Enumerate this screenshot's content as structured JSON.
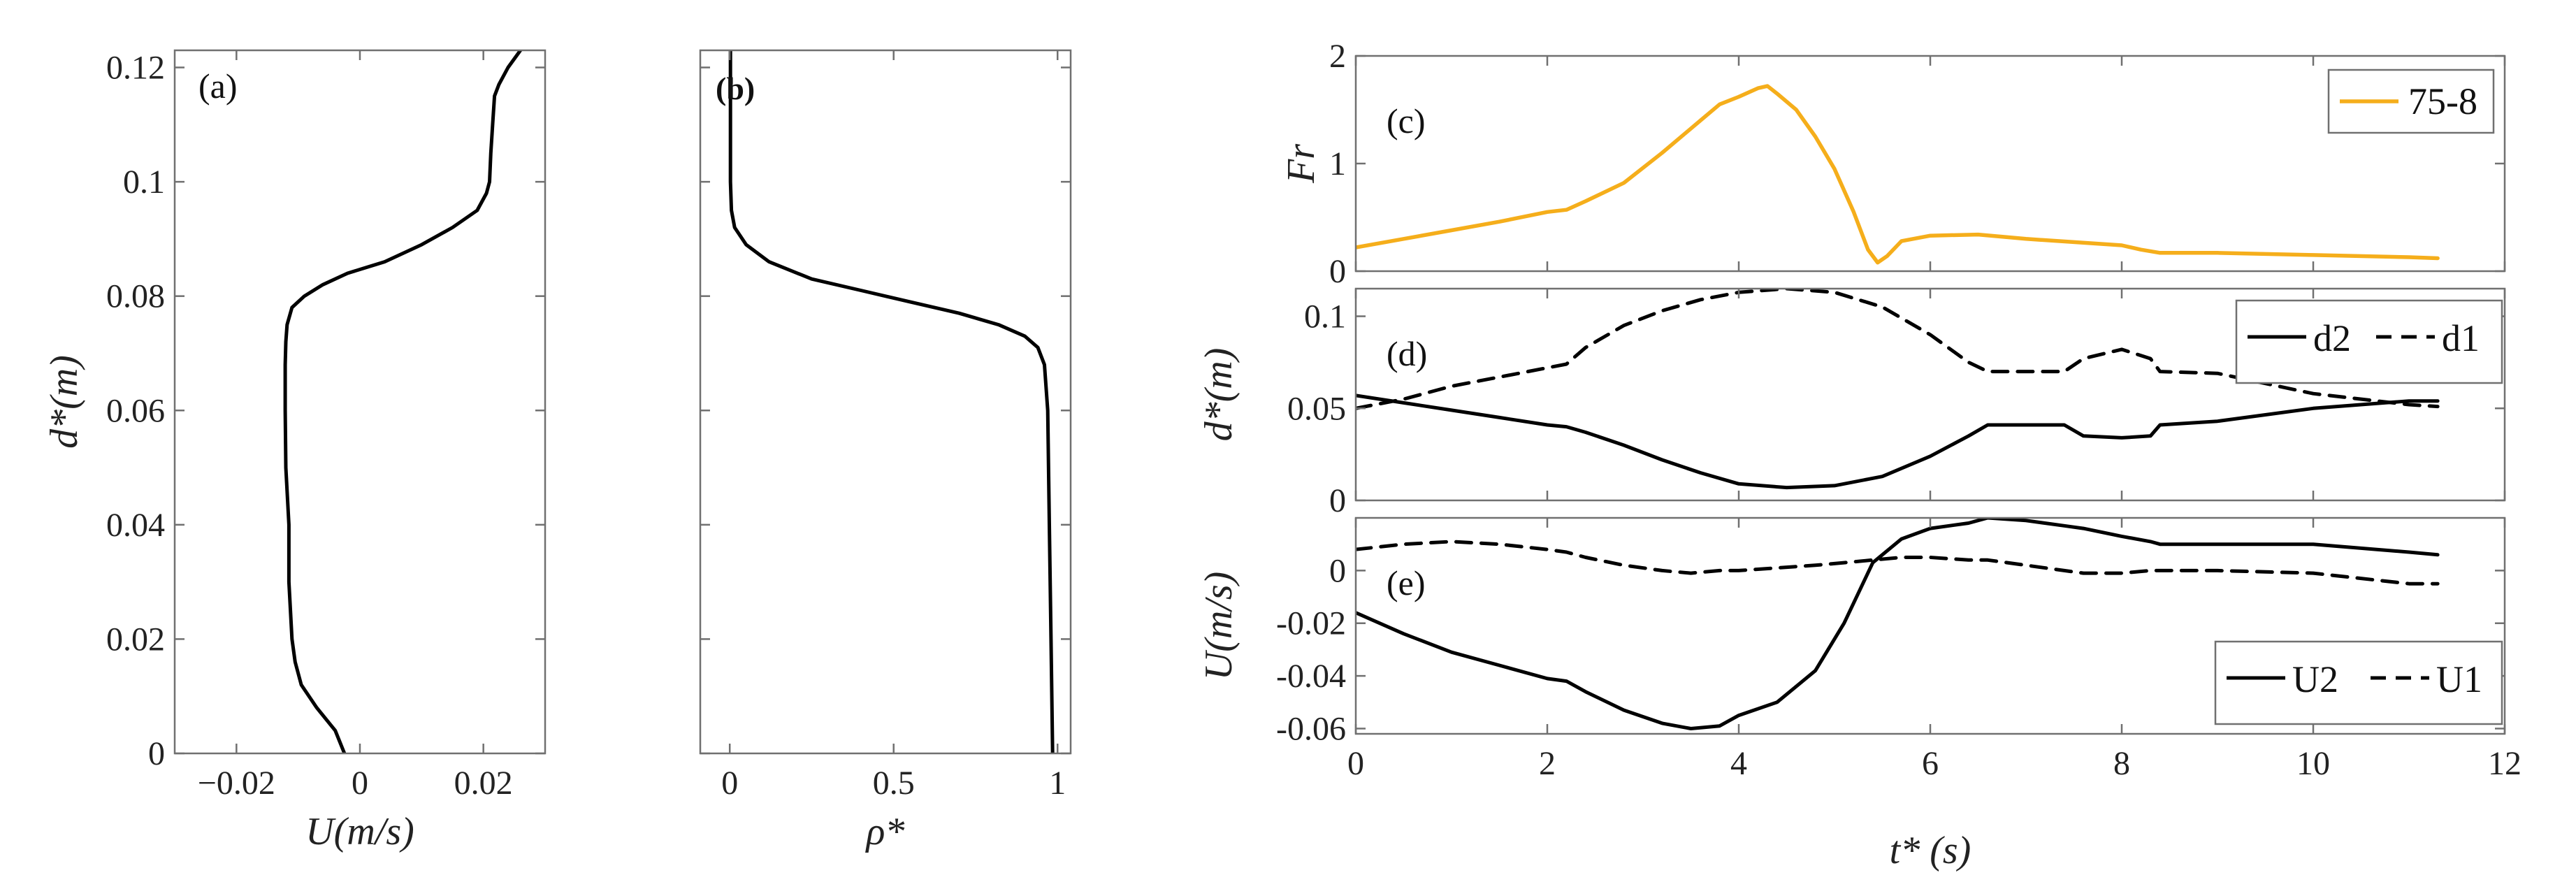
{
  "chart_data": [
    {
      "id": "a",
      "type": "line",
      "panel_label": "(a)",
      "xlabel": "U(m/s)",
      "ylabel": "d*(m)",
      "xlim": [
        -0.03,
        0.03
      ],
      "ylim": [
        0,
        0.123
      ],
      "xticks": [
        -0.02,
        0,
        0.02
      ],
      "xtick_labels": [
        "−0.02",
        "0",
        "0.02"
      ],
      "yticks": [
        0,
        0.02,
        0.04,
        0.06,
        0.08,
        0.1,
        0.12
      ],
      "ytick_labels": [
        "0",
        "0.02",
        "0.04",
        "0.06",
        "0.08",
        "0.1",
        "0.12"
      ],
      "series": [
        {
          "name": "U profile",
          "color": "#000000",
          "dash": "solid",
          "x": [
            -0.0025,
            -0.004,
            -0.007,
            -0.0095,
            -0.0105,
            -0.011,
            -0.0115,
            -0.0115,
            -0.012,
            -0.0121,
            -0.0121,
            -0.012,
            -0.0118,
            -0.011,
            -0.009,
            -0.006,
            -0.002,
            0.004,
            0.01,
            0.015,
            0.019,
            0.0205,
            0.021,
            0.0212,
            0.0215,
            0.0218,
            0.0225,
            0.024,
            0.026
          ],
          "y": [
            0,
            0.004,
            0.008,
            0.012,
            0.016,
            0.02,
            0.03,
            0.04,
            0.05,
            0.06,
            0.068,
            0.072,
            0.075,
            0.078,
            0.08,
            0.082,
            0.084,
            0.086,
            0.089,
            0.092,
            0.095,
            0.098,
            0.1,
            0.105,
            0.11,
            0.115,
            0.117,
            0.12,
            0.123
          ]
        }
      ]
    },
    {
      "id": "b",
      "type": "line",
      "panel_label": "(b)",
      "xlabel": "ρ*",
      "ylabel": "",
      "xlim": [
        -0.09,
        1.04
      ],
      "ylim": [
        0,
        0.123
      ],
      "xticks": [
        0,
        0.5,
        1
      ],
      "xtick_labels": [
        "0",
        "0.5",
        "1"
      ],
      "yticks": [
        0,
        0.02,
        0.04,
        0.06,
        0.08,
        0.1,
        0.12
      ],
      "ytick_labels": [],
      "series": [
        {
          "name": "rho profile",
          "color": "#000000",
          "dash": "solid",
          "x": [
            0.985,
            0.98,
            0.975,
            0.97,
            0.96,
            0.94,
            0.9,
            0.82,
            0.7,
            0.55,
            0.4,
            0.25,
            0.12,
            0.05,
            0.015,
            0.005,
            0.002,
            0.002
          ],
          "y": [
            0,
            0.02,
            0.04,
            0.06,
            0.068,
            0.071,
            0.073,
            0.075,
            0.077,
            0.079,
            0.081,
            0.083,
            0.086,
            0.089,
            0.092,
            0.095,
            0.1,
            0.123
          ]
        }
      ]
    },
    {
      "id": "c",
      "type": "line",
      "panel_label": "(c)",
      "xlabel": "",
      "ylabel": "Fr",
      "xlim": [
        0,
        12
      ],
      "ylim": [
        0,
        2
      ],
      "xticks": [
        0,
        2,
        4,
        6,
        8,
        10,
        12
      ],
      "xtick_labels": [],
      "yticks": [
        0,
        1,
        2
      ],
      "ytick_labels": [
        "0",
        "1",
        "2"
      ],
      "legend": {
        "position": "top-right",
        "entries": [
          "75-8"
        ]
      },
      "series": [
        {
          "name": "75-8",
          "color": "#f5ae1b",
          "dash": "solid",
          "x": [
            0,
            0.5,
            1,
            1.5,
            2,
            2.2,
            2.4,
            2.8,
            3.2,
            3.6,
            3.8,
            4.0,
            4.2,
            4.3,
            4.4,
            4.6,
            4.8,
            5.0,
            5.2,
            5.35,
            5.45,
            5.55,
            5.7,
            6,
            6.5,
            7,
            7.5,
            8,
            8.2,
            8.4,
            9,
            10,
            11,
            11.3
          ],
          "y": [
            0.22,
            0.3,
            0.38,
            0.46,
            0.55,
            0.57,
            0.65,
            0.82,
            1.1,
            1.4,
            1.55,
            1.62,
            1.7,
            1.72,
            1.65,
            1.5,
            1.25,
            0.95,
            0.55,
            0.2,
            0.08,
            0.14,
            0.28,
            0.33,
            0.34,
            0.3,
            0.27,
            0.24,
            0.2,
            0.17,
            0.17,
            0.15,
            0.13,
            0.12
          ]
        }
      ]
    },
    {
      "id": "d",
      "type": "line",
      "panel_label": "(d)",
      "xlabel": "",
      "ylabel": "d*(m)",
      "xlim": [
        0,
        12
      ],
      "ylim": [
        0,
        0.115
      ],
      "xticks": [
        0,
        2,
        4,
        6,
        8,
        10,
        12
      ],
      "xtick_labels": [],
      "yticks": [
        0,
        0.05,
        0.1
      ],
      "ytick_labels": [
        "0",
        "0.05",
        "0.1"
      ],
      "legend": {
        "position": "top-right",
        "entries": [
          "d2",
          "d1"
        ]
      },
      "series": [
        {
          "name": "d2",
          "color": "#000000",
          "dash": "solid",
          "x": [
            0,
            0.5,
            1,
            1.5,
            2,
            2.2,
            2.4,
            2.8,
            3.2,
            3.6,
            4.0,
            4.5,
            5.0,
            5.5,
            6.0,
            6.4,
            6.6,
            7.0,
            7.4,
            7.6,
            8.0,
            8.3,
            8.4,
            9.0,
            10,
            11,
            11.3
          ],
          "y": [
            0.057,
            0.053,
            0.049,
            0.045,
            0.041,
            0.04,
            0.037,
            0.03,
            0.022,
            0.015,
            0.009,
            0.007,
            0.008,
            0.013,
            0.024,
            0.035,
            0.041,
            0.041,
            0.041,
            0.035,
            0.034,
            0.035,
            0.041,
            0.043,
            0.05,
            0.054,
            0.054
          ]
        },
        {
          "name": "d1",
          "color": "#000000",
          "dash": "dashed",
          "x": [
            0,
            0.5,
            1,
            1.5,
            2,
            2.2,
            2.4,
            2.8,
            3.2,
            3.6,
            4.0,
            4.5,
            5.0,
            5.5,
            6.0,
            6.4,
            6.6,
            7.0,
            7.4,
            7.6,
            8.0,
            8.3,
            8.4,
            9.0,
            10,
            11,
            11.3
          ],
          "y": [
            0.05,
            0.055,
            0.062,
            0.067,
            0.072,
            0.074,
            0.083,
            0.095,
            0.103,
            0.109,
            0.113,
            0.115,
            0.113,
            0.105,
            0.09,
            0.075,
            0.07,
            0.07,
            0.07,
            0.077,
            0.082,
            0.077,
            0.07,
            0.069,
            0.058,
            0.052,
            0.051
          ]
        }
      ]
    },
    {
      "id": "e",
      "type": "line",
      "panel_label": "(e)",
      "xlabel": "t* (s)",
      "ylabel": "U(m/s)",
      "xlim": [
        0,
        12
      ],
      "ylim": [
        -0.062,
        0.02
      ],
      "xticks": [
        0,
        2,
        4,
        6,
        8,
        10,
        12
      ],
      "xtick_labels": [
        "0",
        "2",
        "4",
        "6",
        "8",
        "10",
        "12"
      ],
      "yticks": [
        -0.06,
        -0.04,
        -0.02,
        0
      ],
      "ytick_labels": [
        "-0.06",
        "-0.04",
        "-0.02",
        "0"
      ],
      "legend": {
        "position": "bottom-right",
        "entries": [
          "U2",
          "U1"
        ]
      },
      "series": [
        {
          "name": "U2",
          "color": "#000000",
          "dash": "solid",
          "x": [
            0,
            0.5,
            1,
            1.5,
            2,
            2.2,
            2.4,
            2.8,
            3.2,
            3.5,
            3.8,
            4.0,
            4.4,
            4.8,
            5.1,
            5.4,
            5.7,
            6.0,
            6.4,
            6.6,
            7.0,
            7.4,
            7.6,
            8.0,
            8.3,
            8.4,
            9.0,
            10,
            11,
            11.3
          ],
          "y": [
            -0.016,
            -0.024,
            -0.031,
            -0.036,
            -0.041,
            -0.042,
            -0.046,
            -0.053,
            -0.058,
            -0.06,
            -0.059,
            -0.055,
            -0.05,
            -0.038,
            -0.02,
            0.003,
            0.012,
            0.016,
            0.018,
            0.02,
            0.019,
            0.017,
            0.016,
            0.013,
            0.011,
            0.01,
            0.01,
            0.01,
            0.007,
            0.006
          ]
        },
        {
          "name": "U1",
          "color": "#000000",
          "dash": "dashed",
          "x": [
            0,
            0.5,
            1,
            1.5,
            2,
            2.2,
            2.4,
            2.8,
            3.2,
            3.5,
            3.8,
            4.0,
            4.4,
            4.8,
            5.1,
            5.4,
            5.7,
            6.0,
            6.4,
            6.6,
            7.0,
            7.4,
            7.6,
            8.0,
            8.3,
            8.4,
            9.0,
            10,
            11,
            11.3
          ],
          "y": [
            0.008,
            0.01,
            0.011,
            0.01,
            0.008,
            0.007,
            0.005,
            0.002,
            0.0,
            -0.001,
            0.0,
            0.0,
            0.001,
            0.002,
            0.003,
            0.004,
            0.005,
            0.005,
            0.004,
            0.004,
            0.002,
            0.0,
            -0.001,
            -0.001,
            0.0,
            0.0,
            0.0,
            -0.001,
            -0.005,
            -0.005
          ]
        }
      ]
    }
  ]
}
